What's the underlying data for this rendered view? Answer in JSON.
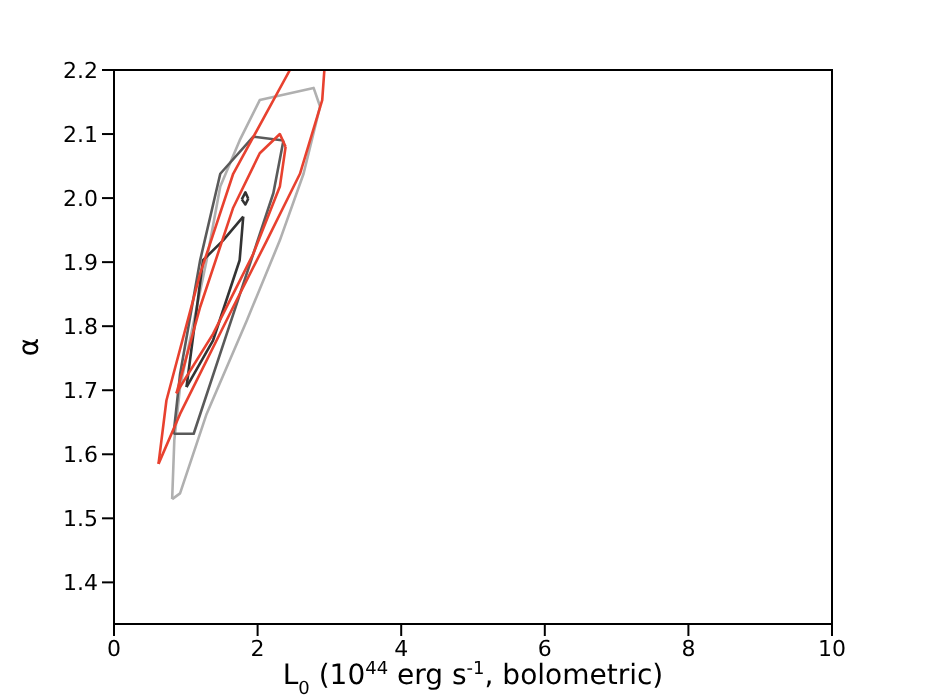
{
  "chart_data": {
    "type": "line",
    "xlabel": "L$_{0}$ (10$^{44}$ erg s$^{-1}$, bolometric)",
    "ylabel": "α",
    "xlim": [
      0,
      10
    ],
    "xticks": [
      0,
      2,
      4,
      6,
      8,
      10
    ],
    "ylim": [
      1.335,
      2.2
    ],
    "yticks": [
      1.4,
      1.5,
      1.6,
      1.7,
      1.8,
      1.9,
      {
        "value": 2,
        "label": "2.0"
      },
      2.1,
      2.2
    ],
    "legend": false,
    "marker": "none",
    "line_style": "solid",
    "series": [
      {
        "color": "#b0b0b0",
        "x": [
          0.81,
          0.84,
          0.92,
          1.29,
          1.48,
          1.75,
          2.03,
          2.78,
          2.87
        ],
        "values": [
          1.53,
          1.622,
          1.705,
          1.903,
          2.018,
          2.09,
          2.153,
          2.172,
          2.143
        ]
      },
      {
        "color": "#b0b0b0",
        "x": [
          0.81,
          0.92,
          1.29,
          1.85,
          2.31,
          2.64,
          2.87
        ],
        "values": [
          1.53,
          1.539,
          1.663,
          1.809,
          1.934,
          2.038,
          2.143
        ]
      },
      {
        "color": "#5a5a5a",
        "x": [
          0.83,
          0.92,
          1.2,
          1.48,
          1.94,
          2.36
        ],
        "values": [
          1.632,
          1.725,
          1.903,
          2.038,
          2.096,
          2.09
        ]
      },
      {
        "color": "#5a5a5a",
        "x": [
          0.83,
          1.11,
          1.57,
          1.94,
          2.22,
          2.36
        ],
        "values": [
          1.632,
          1.632,
          1.788,
          1.913,
          2.008,
          2.09
        ]
      },
      {
        "color": "#333333",
        "x": [
          1.01,
          1.24,
          1.52,
          1.8
        ],
        "values": [
          1.705,
          1.903,
          1.934,
          1.971
        ]
      },
      {
        "color": "#333333",
        "x": [
          1.01,
          1.38,
          1.75,
          1.8
        ],
        "values": [
          1.705,
          1.778,
          1.903,
          1.971
        ]
      },
      {
        "color": "#333333",
        "x": [
          1.78,
          1.83,
          1.87
        ],
        "values": [
          1.998,
          2.009,
          1.999
        ]
      },
      {
        "color": "#333333",
        "x": [
          1.78,
          1.83,
          1.87
        ],
        "values": [
          1.998,
          1.99,
          1.999
        ]
      },
      {
        "color": "#e8412f",
        "x": [
          0.62,
          0.73,
          1.2,
          1.66,
          2.45
        ],
        "values": [
          1.585,
          1.684,
          1.882,
          2.038,
          2.2
        ]
      },
      {
        "color": "#e8412f",
        "x": [
          0.62,
          0.92,
          1.66,
          2.13,
          2.59,
          2.9,
          2.93
        ],
        "values": [
          1.585,
          1.663,
          1.83,
          1.934,
          2.038,
          2.153,
          2.2
        ]
      },
      {
        "color": "#e8412f",
        "x": [
          0.87,
          1.2,
          1.66,
          2.03,
          2.31,
          2.39
        ],
        "values": [
          1.695,
          1.83,
          1.985,
          2.07,
          2.1,
          2.08
        ]
      },
      {
        "color": "#e8412f",
        "x": [
          0.87,
          0.92,
          1.38,
          1.94,
          2.31,
          2.39
        ],
        "values": [
          1.695,
          1.705,
          1.788,
          1.913,
          2.018,
          2.08
        ]
      }
    ]
  }
}
